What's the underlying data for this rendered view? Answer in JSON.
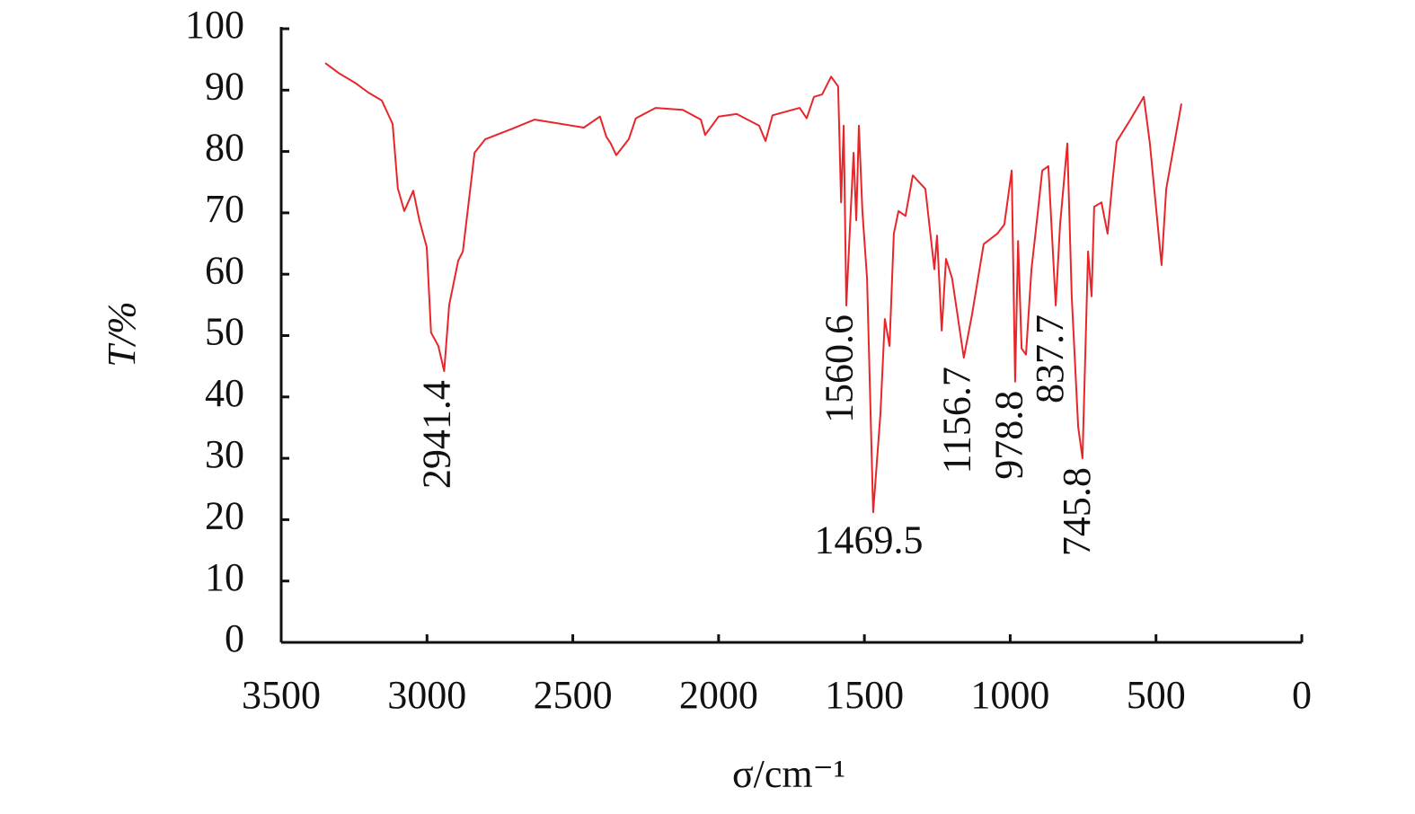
{
  "chart_data": {
    "type": "line",
    "xlabel": "σ/cm⁻¹",
    "ylabel": "T/%",
    "color": "#e8262a",
    "x": [
      3349,
      3300,
      3247,
      3201,
      3155,
      3118,
      3100,
      3078,
      3047,
      3026,
      3001,
      2986,
      2961,
      2941,
      2924,
      2893,
      2877,
      2837,
      2800,
      2708,
      2631,
      2462,
      2407,
      2385,
      2370,
      2351,
      2308,
      2284,
      2216,
      2123,
      2061,
      2046,
      2000,
      1938,
      1861,
      1839,
      1815,
      1722,
      1698,
      1673,
      1645,
      1614,
      1590,
      1580,
      1571,
      1562,
      1549,
      1537,
      1528,
      1519,
      1507,
      1491,
      1470,
      1445,
      1430,
      1414,
      1399,
      1383,
      1359,
      1334,
      1291,
      1260,
      1251,
      1235,
      1220,
      1199,
      1159,
      1131,
      1091,
      1044,
      1020,
      995,
      983,
      973,
      961,
      946,
      927,
      905,
      890,
      869,
      844,
      829,
      804,
      789,
      767,
      752,
      733,
      721,
      712,
      687,
      666,
      650,
      635,
      588,
      542,
      521,
      481,
      465,
      413
    ],
    "values": [
      94.4,
      92.7,
      91.2,
      89.6,
      88.3,
      84.5,
      74,
      70.3,
      73.6,
      68.8,
      64.4,
      50.5,
      48.3,
      44.2,
      55,
      62.2,
      63.7,
      79.8,
      82,
      83.7,
      85.2,
      83.9,
      85.7,
      82.4,
      81.3,
      79.4,
      82,
      85.4,
      87.1,
      86.8,
      85.2,
      82.7,
      85.7,
      86.1,
      84.2,
      81.7,
      85.9,
      87.1,
      85.4,
      88.9,
      89.3,
      92.2,
      90.6,
      71.7,
      84.2,
      54.9,
      68,
      79.8,
      68.8,
      84.2,
      70.3,
      59.3,
      21.2,
      37.3,
      52.7,
      48.3,
      66.6,
      70.3,
      69.5,
      76.1,
      73.9,
      60.8,
      66.3,
      50.8,
      62.5,
      59.3,
      46.4,
      53.4,
      64.9,
      66.6,
      68.1,
      76.9,
      42.5,
      65.4,
      47.9,
      46.9,
      60.8,
      70.3,
      76.9,
      77.6,
      54.9,
      68,
      81.3,
      56.4,
      35.1,
      30,
      63.7,
      56.4,
      71,
      71.7,
      66.6,
      74.7,
      81.6,
      85.2,
      88.9,
      81.3,
      61.5,
      73.9,
      87.8
    ],
    "xlim": [
      3500,
      0
    ],
    "xticks": [
      3500,
      3000,
      2500,
      2000,
      1500,
      1000,
      500,
      0
    ],
    "ylim": [
      0,
      100
    ],
    "yticks": [
      0,
      10,
      20,
      30,
      40,
      50,
      60,
      70,
      80,
      90,
      100
    ],
    "annotations": [
      "2941.4",
      "1560.6",
      "1469.5",
      "1156.7",
      "978.8",
      "837.7",
      "745.8"
    ]
  }
}
